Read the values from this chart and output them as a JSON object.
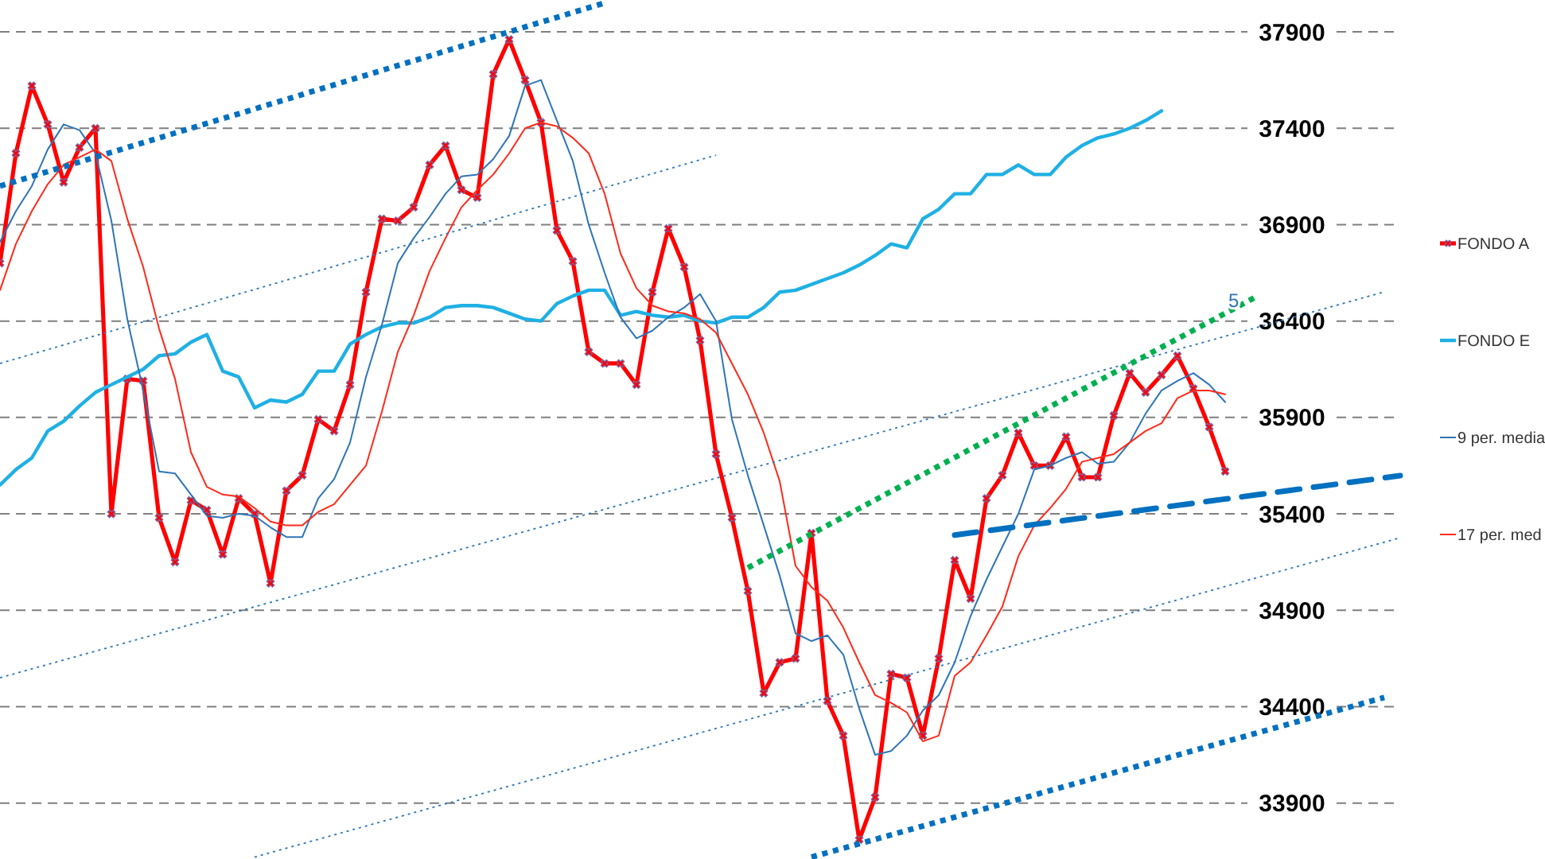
{
  "chart_data": {
    "type": "line",
    "categories": [
      null,
      null,
      null,
      null,
      null,
      null,
      null,
      null,
      null,
      null,
      null,
      null,
      null,
      null,
      null,
      null,
      null,
      null,
      null,
      null,
      null,
      null,
      null,
      null,
      null,
      null,
      null,
      null,
      null,
      null,
      null,
      null,
      null,
      null,
      null,
      null,
      null,
      null,
      null,
      null,
      null,
      null,
      null,
      null,
      null,
      null,
      null,
      null,
      null,
      null,
      null,
      null,
      null,
      null,
      null,
      null,
      null,
      null,
      null,
      null,
      null,
      null,
      null,
      null,
      null,
      null,
      null,
      null,
      null,
      null,
      null,
      null,
      null,
      null,
      null,
      null,
      null,
      null,
      null,
      null,
      null,
      null,
      null,
      null,
      null,
      null,
      null,
      null,
      null
    ],
    "ylim": [
      33610,
      38065
    ],
    "yticks": [
      33900,
      34400,
      34900,
      35400,
      35900,
      36400,
      36900,
      37400,
      37900
    ],
    "grid": "y",
    "legend": "right",
    "annotations": [
      "5"
    ],
    "series": [
      {
        "name": "FONDO A",
        "color": "#ff0000",
        "marker": "cross",
        "values": [
          36700,
          37270,
          37620,
          37420,
          37120,
          37300,
          37400,
          35400,
          36100,
          36090,
          35380,
          35150,
          35470,
          35420,
          35190,
          35480,
          35400,
          35040,
          35520,
          35600,
          35890,
          35830,
          36070,
          36550,
          36930,
          36920,
          36990,
          37210,
          37310,
          37080,
          37040,
          37680,
          37860,
          37650,
          37430,
          36870,
          36710,
          36240,
          36180,
          36180,
          36070,
          36550,
          36880,
          36680,
          36300,
          35710,
          35380,
          35000,
          34470,
          34630,
          34650,
          35300,
          34430,
          34250,
          33710,
          33930,
          34570,
          34550,
          34250,
          34650,
          35160,
          34960,
          35480,
          35600,
          35820,
          35650,
          35650,
          35800,
          35590,
          35590,
          35910,
          36130,
          36030,
          36120,
          36220,
          36050,
          35850,
          35620,
          null,
          null,
          null,
          null,
          null,
          null,
          null,
          null,
          null,
          null,
          null
        ]
      },
      {
        "name": "FONDO E",
        "color": "#1fb0e4",
        "values": [
          35550,
          35630,
          35690,
          35830,
          35880,
          35960,
          36030,
          36070,
          36110,
          36150,
          36220,
          36230,
          36290,
          36330,
          36140,
          36110,
          35950,
          35990,
          35980,
          36020,
          36140,
          36140,
          36280,
          36330,
          36370,
          36390,
          36390,
          36420,
          36470,
          36480,
          36480,
          36470,
          36440,
          36410,
          36400,
          36490,
          36530,
          36560,
          36560,
          36430,
          36450,
          36430,
          36420,
          36430,
          36400,
          36390,
          36420,
          36420,
          36470,
          36550,
          36560,
          36590,
          36620,
          36650,
          36690,
          36740,
          36800,
          36780,
          36930,
          36980,
          37060,
          37060,
          37160,
          37160,
          37210,
          37160,
          37160,
          37250,
          37310,
          37350,
          37370,
          37400,
          37440,
          37490,
          null,
          null,
          null,
          null,
          null,
          null,
          null,
          null,
          null,
          null,
          null,
          null,
          null,
          null,
          null
        ]
      },
      {
        "name": "9 per. media",
        "color": "#2e75b6",
        "values": [
          36810,
          36970,
          37100,
          37290,
          37420,
          37390,
          37270,
          36920,
          36410,
          36040,
          35620,
          35610,
          35500,
          35390,
          35380,
          35400,
          35390,
          35330,
          35280,
          35280,
          35480,
          35580,
          35770,
          36110,
          36380,
          36700,
          36830,
          36940,
          37060,
          37150,
          37160,
          37240,
          37360,
          37620,
          37650,
          37440,
          37230,
          36900,
          36650,
          36420,
          36310,
          36350,
          36420,
          36470,
          36540,
          36400,
          35890,
          35600,
          35340,
          35080,
          34780,
          34740,
          34770,
          34670,
          34390,
          34150,
          34170,
          34250,
          34380,
          34460,
          34630,
          34870,
          35060,
          35230,
          35400,
          35630,
          35650,
          35690,
          35720,
          35660,
          35670,
          35770,
          35920,
          36040,
          36090,
          36130,
          36070,
          35980,
          null,
          null,
          null,
          null,
          null,
          null,
          null,
          null,
          null,
          null,
          null
        ]
      },
      {
        "name": "17 per. med",
        "color": "#ff2a1a",
        "values": [
          36560,
          36800,
          36970,
          37110,
          37210,
          37250,
          37290,
          37230,
          36930,
          36680,
          36360,
          36100,
          35720,
          35540,
          35500,
          35490,
          35430,
          35360,
          35340,
          35340,
          35410,
          35450,
          35550,
          35650,
          35930,
          36240,
          36430,
          36660,
          36830,
          36990,
          37080,
          37160,
          37270,
          37400,
          37430,
          37410,
          37350,
          37270,
          37060,
          36750,
          36570,
          36480,
          36450,
          36440,
          36410,
          36340,
          36180,
          36020,
          35820,
          35570,
          35130,
          35020,
          34950,
          34810,
          34630,
          34460,
          34420,
          34370,
          34220,
          34250,
          34560,
          34630,
          34770,
          34920,
          35180,
          35340,
          35430,
          35530,
          35670,
          35690,
          35710,
          35770,
          35830,
          35870,
          36000,
          36040,
          36040,
          36020,
          null,
          null,
          null,
          null,
          null,
          null,
          null,
          null,
          null,
          null,
          null
        ]
      },
      {
        "color": "#0070c0",
        "line_style": "dotted",
        "values": [
          37100,
          37125,
          37150,
          37175,
          37200,
          37225,
          37250,
          37275,
          37300,
          37325,
          37350,
          37375,
          37400,
          37425,
          37450,
          37475,
          37500,
          37525,
          37550,
          37575,
          37600,
          37625,
          37650,
          37675,
          37700,
          37725,
          37750,
          37775,
          37800,
          37825,
          37850,
          37875,
          37900,
          37925,
          37950,
          37975,
          38000,
          38025,
          38050,
          null,
          null,
          null,
          null,
          null,
          null,
          null,
          null,
          null,
          null,
          null,
          null,
          null,
          null,
          null,
          null,
          null,
          null,
          null,
          null,
          null,
          null,
          null,
          null,
          null,
          null,
          null,
          null,
          null,
          null,
          null,
          null,
          null,
          null,
          null,
          null,
          null,
          null,
          null,
          null,
          null,
          null,
          null,
          null,
          null,
          null,
          null,
          null,
          null,
          null
        ]
      },
      {
        "color": "#0070c0",
        "line_style": "dotted",
        "values": [
          null,
          null,
          null,
          null,
          null,
          null,
          null,
          null,
          null,
          null,
          null,
          null,
          null,
          null,
          null,
          null,
          null,
          null,
          null,
          null,
          null,
          null,
          null,
          null,
          null,
          null,
          null,
          null,
          null,
          null,
          null,
          null,
          null,
          null,
          null,
          null,
          null,
          null,
          null,
          null,
          null,
          null,
          null,
          null,
          null,
          null,
          null,
          null,
          null,
          null,
          null,
          33620,
          33643,
          33666,
          33689,
          33712,
          33735,
          33758,
          33781,
          33804,
          33827,
          33850,
          33873,
          33896,
          33919,
          33942,
          33965,
          33988,
          34011,
          34034,
          34057,
          34080,
          34103,
          34126,
          34149,
          34172,
          34195,
          34218,
          34241,
          34264,
          34287,
          34310,
          34333,
          34356,
          34379,
          34402,
          34425,
          34448,
          null
        ]
      },
      {
        "color": "#2e75b6",
        "line_style": "dotted",
        "values": [
          36180,
          36204,
          36228,
          36252,
          36276,
          36300,
          36324,
          36348,
          36372,
          36396,
          36420,
          36444,
          36468,
          36492,
          36516,
          36540,
          36564,
          36588,
          36612,
          36636,
          36660,
          36684,
          36708,
          36732,
          36756,
          36780,
          36804,
          36828,
          36852,
          36876,
          36900,
          36924,
          36948,
          36972,
          36996,
          37020,
          37044,
          37068,
          37092,
          37116,
          37140,
          37164,
          37188,
          37212,
          37236,
          37260,
          null,
          null,
          null,
          null,
          null,
          null,
          null,
          null,
          null,
          null,
          null,
          null,
          null,
          null,
          null,
          null,
          null,
          null,
          null,
          null,
          null,
          null,
          null,
          null,
          null,
          null,
          null,
          null,
          null,
          null,
          null,
          null,
          null,
          null,
          null,
          null,
          null,
          null,
          null,
          null,
          null,
          null,
          null
        ]
      },
      {
        "color": "#2e75b6",
        "line_style": "dotted",
        "values": [
          34550,
          34573,
          34596,
          34619,
          34642,
          34665,
          34688,
          34711,
          34734,
          34757,
          34780,
          34803,
          34826,
          34849,
          34872,
          34895,
          34918,
          34941,
          34964,
          34987,
          35010,
          35033,
          35056,
          35079,
          35102,
          35125,
          35148,
          35171,
          35194,
          35217,
          35240,
          35263,
          35286,
          35309,
          35332,
          35355,
          35378,
          35401,
          35424,
          35447,
          35470,
          35493,
          35516,
          35539,
          35562,
          35585,
          35608,
          35631,
          35654,
          35677,
          35700,
          35723,
          35746,
          35769,
          35792,
          35815,
          35838,
          35861,
          35884,
          35907,
          35930,
          35953,
          35976,
          35999,
          36022,
          36045,
          36068,
          36091,
          36114,
          36137,
          36160,
          36183,
          36206,
          36229,
          36252,
          36275,
          36298,
          36321,
          36344,
          36367,
          36390,
          36413,
          36436,
          36459,
          36482,
          36505,
          36528,
          36551,
          null
        ]
      },
      {
        "color": "#2e75b6",
        "line_style": "dotted",
        "values": [
          null,
          null,
          null,
          null,
          null,
          null,
          null,
          null,
          null,
          null,
          null,
          null,
          null,
          null,
          null,
          null,
          33620,
          33643,
          33666,
          33689,
          33712,
          33735,
          33758,
          33781,
          33804,
          33827,
          33850,
          33873,
          33896,
          33919,
          33942,
          33965,
          33988,
          34011,
          34034,
          34057,
          34080,
          34103,
          34126,
          34149,
          34172,
          34195,
          34218,
          34241,
          34264,
          34287,
          34310,
          34333,
          34356,
          34379,
          34402,
          34425,
          34448,
          34471,
          34494,
          34517,
          34540,
          34563,
          34586,
          34609,
          34632,
          34655,
          34678,
          34701,
          34724,
          34747,
          34770,
          34793,
          34816,
          34839,
          34862,
          34885,
          34908,
          34931,
          34954,
          34977,
          35000,
          35023,
          35046,
          35069,
          35092,
          35115,
          35138,
          35161,
          35184,
          35207,
          35230,
          35253,
          35276
        ]
      },
      {
        "color": "#00b050",
        "line_style": "dotted",
        "values": [
          null,
          null,
          null,
          null,
          null,
          null,
          null,
          null,
          null,
          null,
          null,
          null,
          null,
          null,
          null,
          null,
          null,
          null,
          null,
          null,
          null,
          null,
          null,
          null,
          null,
          null,
          null,
          null,
          null,
          null,
          null,
          null,
          null,
          null,
          null,
          null,
          null,
          null,
          null,
          null,
          null,
          null,
          null,
          null,
          null,
          null,
          null,
          35120,
          35164,
          35208,
          35252,
          35296,
          35340,
          35384,
          35428,
          35472,
          35516,
          35560,
          35604,
          35648,
          35692,
          35736,
          35780,
          35824,
          35868,
          35912,
          35956,
          36000,
          36044,
          36088,
          36132,
          36176,
          36220,
          36264,
          36308,
          36352,
          36396,
          36440,
          36484,
          36528,
          null,
          null,
          null,
          null,
          null,
          null,
          null,
          null,
          null
        ]
      },
      {
        "color": "#0070c0",
        "line_style": "dashed",
        "values": [
          null,
          null,
          null,
          null,
          null,
          null,
          null,
          null,
          null,
          null,
          null,
          null,
          null,
          null,
          null,
          null,
          null,
          null,
          null,
          null,
          null,
          null,
          null,
          null,
          null,
          null,
          null,
          null,
          null,
          null,
          null,
          null,
          null,
          null,
          null,
          null,
          null,
          null,
          null,
          null,
          null,
          null,
          null,
          null,
          null,
          null,
          null,
          null,
          null,
          null,
          null,
          null,
          null,
          null,
          null,
          null,
          null,
          null,
          null,
          null,
          35290,
          35301,
          35312,
          35323,
          35334,
          35345,
          35356,
          35367,
          35378,
          35389,
          35400,
          35411,
          35422,
          35433,
          35444,
          35455,
          35466,
          35477,
          35488,
          35499,
          35510,
          35521,
          35532,
          35543,
          35554,
          35565,
          35576,
          35587,
          35598
        ]
      }
    ]
  }
}
